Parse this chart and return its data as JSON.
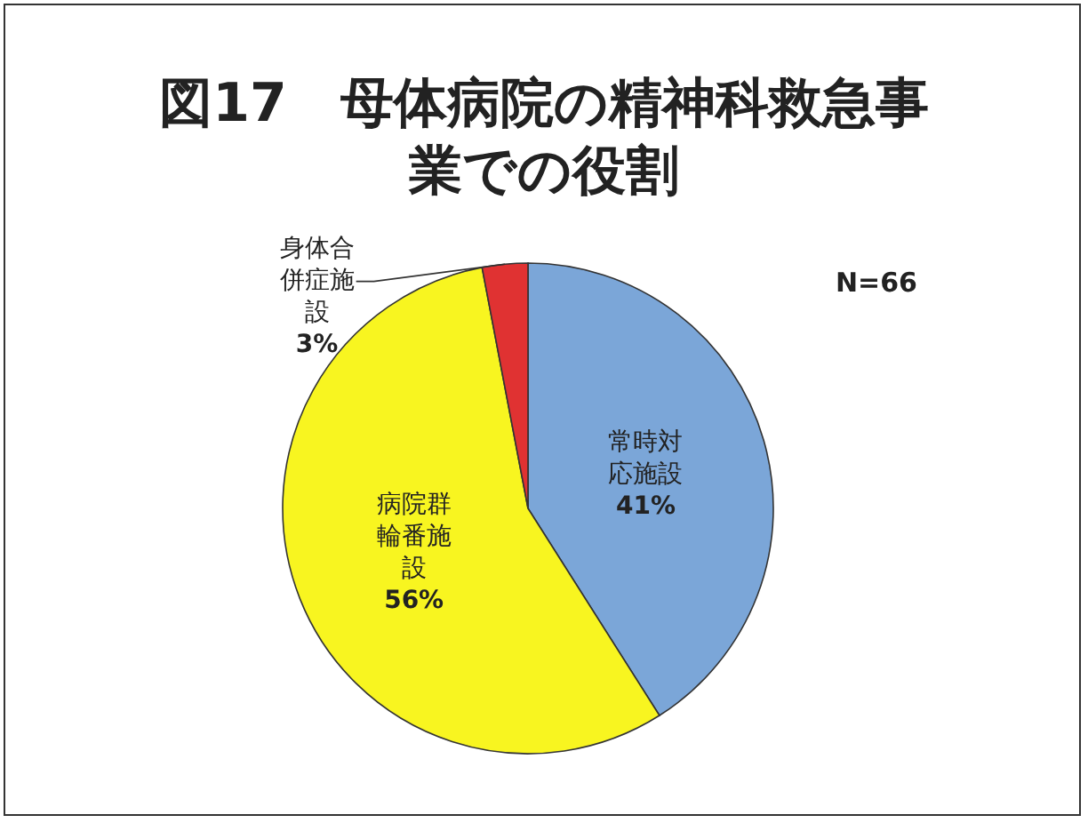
{
  "chart_data": {
    "type": "pie",
    "title": "図17　母体病院の精神科救急事業での役割",
    "categories": [
      "常時対応施設",
      "病院群輪番施設",
      "身体合併症施設"
    ],
    "values": [
      41,
      56,
      3
    ],
    "value_labels": [
      "41%",
      "56%",
      "3%"
    ],
    "colors": [
      "#7ba6d8",
      "#f8f520",
      "#e03232"
    ],
    "annotations": [
      "N=66"
    ]
  }
}
